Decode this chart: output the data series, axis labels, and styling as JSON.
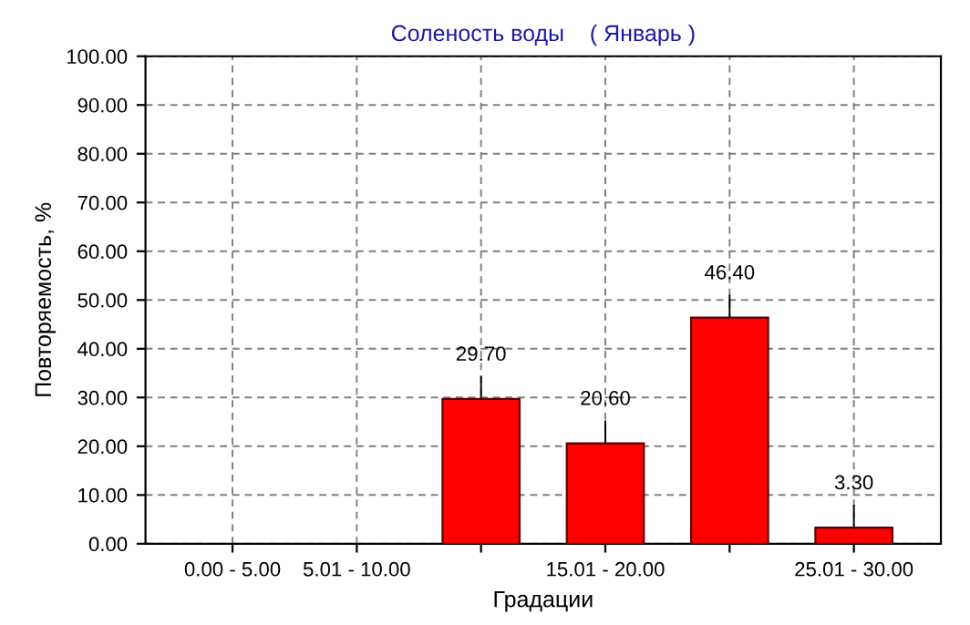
{
  "chart_data": {
    "type": "bar",
    "title": "Соленость воды    ( Январь )",
    "xlabel": "Градации",
    "ylabel": "Повторяемость, %",
    "categories": [
      "0.00 - 5.00",
      "5.01 - 10.00",
      null,
      "15.01 - 20.00",
      null,
      "25.01 - 30.00"
    ],
    "values": [
      0,
      0,
      29.7,
      20.6,
      46.4,
      3.3
    ],
    "value_labels": [
      null,
      null,
      "29.70",
      "20.60",
      "46.40",
      "3.30"
    ],
    "color": "#ff0000",
    "ylim": [
      0,
      100
    ],
    "yticks": [
      {
        "value": 0,
        "label": "0.00"
      },
      {
        "value": 10,
        "label": "10.00"
      },
      {
        "value": 20,
        "label": "20.00"
      },
      {
        "value": 30,
        "label": "30.00"
      },
      {
        "value": 40,
        "label": "40.00"
      },
      {
        "value": 50,
        "label": "50.00"
      },
      {
        "value": 60,
        "label": "60.00"
      },
      {
        "value": 70,
        "label": "70.00"
      },
      {
        "value": 80,
        "label": "80.00"
      },
      {
        "value": 90,
        "label": "90.00"
      },
      {
        "value": 100,
        "label": "100.00"
      }
    ],
    "grid": true,
    "legend": false
  }
}
